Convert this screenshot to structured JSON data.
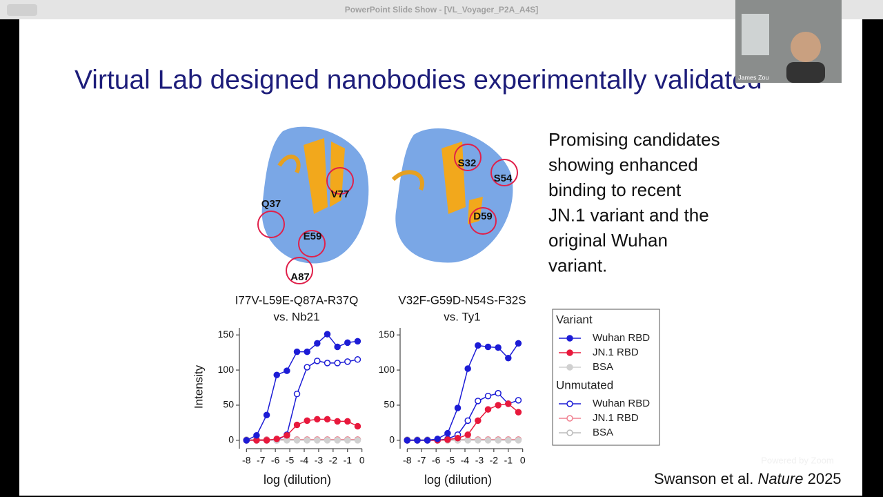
{
  "window_title": "PowerPoint Slide Show - [VL_Voyager_P2A_A4S]",
  "video_name": "James Zou",
  "watermark": "Powered by Zoom",
  "slide": {
    "title": "Virtual Lab designed nanobodies experimentally validated",
    "text_lines": [
      "Promising candidates",
      "showing enhanced",
      "binding to recent",
      "JN.1 variant and the",
      "original Wuhan",
      "variant."
    ],
    "citation": [
      "Swanson et al. ",
      "Nature",
      " 2025"
    ],
    "structure_1_labels": [
      "Q37",
      "V77",
      "E59",
      "A87"
    ],
    "structure_2_labels": [
      "S32",
      "S54",
      "D59"
    ]
  },
  "legend_groups": [
    "Variant",
    "Unmutated"
  ],
  "chart_data": [
    {
      "type": "line",
      "title": "I77V-L59E-Q87A-R37Q",
      "subtitle": "vs. Nb21",
      "x_label": "log (dilution)",
      "y_label": "Intensity",
      "x": [
        -8,
        -7.3,
        -6.6,
        -5.9,
        -5.2,
        -4.5,
        -3.8,
        -3.1,
        -2.4,
        -1.7,
        -1.0,
        -0.3
      ],
      "xlim": [
        -8.3,
        0.3
      ],
      "xticks": [
        -8,
        -7,
        -6,
        -5,
        -4,
        -3,
        -2,
        -1,
        0
      ],
      "ylim": [
        -8,
        160
      ],
      "yticks": [
        0,
        50,
        100,
        150
      ],
      "series": [
        {
          "name": "Wuhan RBD",
          "color": "#1c1cd6",
          "marker": "filled",
          "values": [
            0,
            7,
            36,
            93,
            99,
            126,
            126,
            138,
            151,
            133,
            139,
            141
          ]
        },
        {
          "name": "JN.1 RBD",
          "color": "#e8193c",
          "marker": "filled",
          "values": [
            0,
            0,
            0,
            2,
            7,
            22,
            28,
            30,
            30,
            27,
            27,
            20
          ]
        },
        {
          "name": "BSA",
          "color": "#d0d0d0",
          "marker": "filled",
          "values": [
            0,
            0,
            0,
            0,
            0,
            0,
            0,
            0,
            0,
            0,
            0,
            0
          ]
        },
        {
          "name": "Wuhan RBD",
          "color": "#1c1cd6",
          "marker": "open",
          "values": [
            0,
            0,
            0,
            0,
            8,
            66,
            104,
            113,
            110,
            110,
            112,
            115
          ]
        },
        {
          "name": "JN.1 RBD",
          "color": "#f08090",
          "marker": "open",
          "values": [
            0,
            1,
            1,
            1,
            1,
            1,
            1,
            1,
            1,
            1,
            1,
            1
          ]
        },
        {
          "name": "BSA",
          "color": "#bbbbbb",
          "marker": "open",
          "values": [
            1,
            1,
            1,
            1,
            1,
            1,
            1,
            1,
            1,
            1,
            1,
            1
          ]
        }
      ]
    },
    {
      "type": "line",
      "title": "V32F-G59D-N54S-F32S",
      "subtitle": "vs. Ty1",
      "x_label": "log (dilution)",
      "x": [
        -8,
        -7.3,
        -6.6,
        -5.9,
        -5.2,
        -4.5,
        -3.8,
        -3.1,
        -2.4,
        -1.7,
        -1.0,
        -0.3
      ],
      "xlim": [
        -8.3,
        0.3
      ],
      "xticks": [
        -8,
        -7,
        -6,
        -5,
        -4,
        -3,
        -2,
        -1,
        0
      ],
      "ylim": [
        -8,
        160
      ],
      "yticks": [
        0,
        50,
        100,
        150
      ],
      "series": [
        {
          "name": "Wuhan RBD",
          "color": "#1c1cd6",
          "marker": "filled",
          "values": [
            0,
            0,
            0,
            2,
            10,
            46,
            102,
            135,
            133,
            132,
            117,
            138
          ]
        },
        {
          "name": "JN.1 RBD",
          "color": "#e8193c",
          "marker": "filled",
          "values": [
            0,
            0,
            0,
            0,
            1,
            3,
            8,
            28,
            44,
            50,
            52,
            40
          ]
        },
        {
          "name": "BSA",
          "color": "#d0d0d0",
          "marker": "filled",
          "values": [
            0,
            0,
            0,
            0,
            0,
            0,
            0,
            0,
            0,
            0,
            0,
            0
          ]
        },
        {
          "name": "Wuhan RBD",
          "color": "#1c1cd6",
          "marker": "open",
          "values": [
            0,
            0,
            0,
            0,
            2,
            8,
            28,
            56,
            63,
            67,
            52,
            57
          ]
        },
        {
          "name": "JN.1 RBD",
          "color": "#f08090",
          "marker": "open",
          "values": [
            0,
            0,
            0,
            0,
            0,
            0,
            1,
            1,
            1,
            1,
            1,
            1
          ]
        },
        {
          "name": "BSA",
          "color": "#bbbbbb",
          "marker": "open",
          "values": [
            1,
            1,
            1,
            1,
            1,
            1,
            1,
            1,
            1,
            1,
            1,
            1
          ]
        }
      ]
    }
  ]
}
